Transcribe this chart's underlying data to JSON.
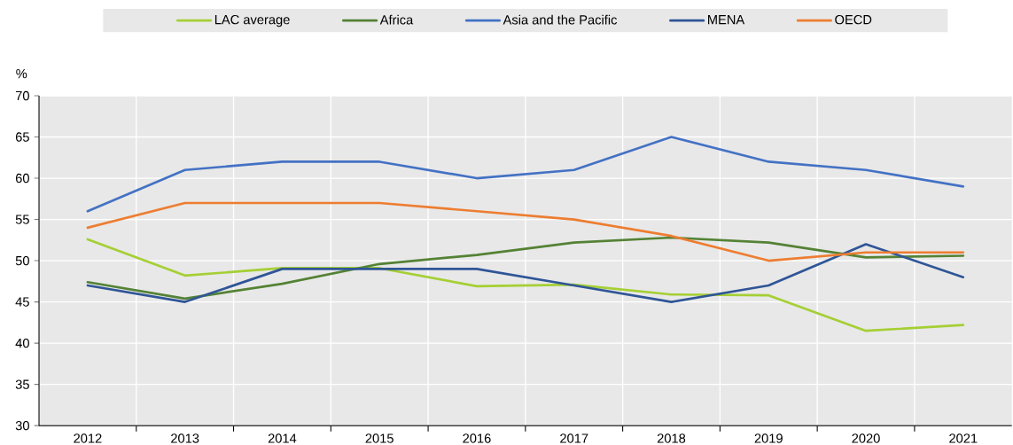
{
  "chart_data": {
    "type": "line",
    "ylabel": "%",
    "categories": [
      "2012",
      "2013",
      "2014",
      "2015",
      "2016",
      "2017",
      "2018",
      "2019",
      "2020",
      "2021"
    ],
    "series": [
      {
        "name": "LAC average",
        "color": "#a5cf34",
        "values": [
          52.6,
          48.2,
          49.1,
          49.1,
          46.9,
          47.1,
          45.9,
          45.8,
          41.5,
          42.2
        ]
      },
      {
        "name": "Africa",
        "color": "#548235",
        "values": [
          47.4,
          45.4,
          47.2,
          49.6,
          50.7,
          52.2,
          52.8,
          52.2,
          50.4,
          50.6
        ]
      },
      {
        "name": "Asia and the Pacific",
        "color": "#4472c4",
        "values": [
          56,
          61,
          62,
          62,
          60,
          61,
          65,
          62,
          61,
          59
        ]
      },
      {
        "name": "MENA",
        "color": "#2f5597",
        "values": [
          47,
          45,
          49,
          49,
          49,
          47,
          45,
          47,
          52,
          48
        ]
      },
      {
        "name": "OECD",
        "color": "#ed7d31",
        "values": [
          54,
          57,
          57,
          57,
          56,
          55,
          53,
          50,
          51,
          51
        ]
      }
    ],
    "ylim": [
      30,
      70
    ],
    "yticks": [
      30,
      35,
      40,
      45,
      50,
      55,
      60,
      65,
      70
    ],
    "grid": true,
    "legend": "top",
    "marker": "none",
    "line_style": "solid"
  }
}
